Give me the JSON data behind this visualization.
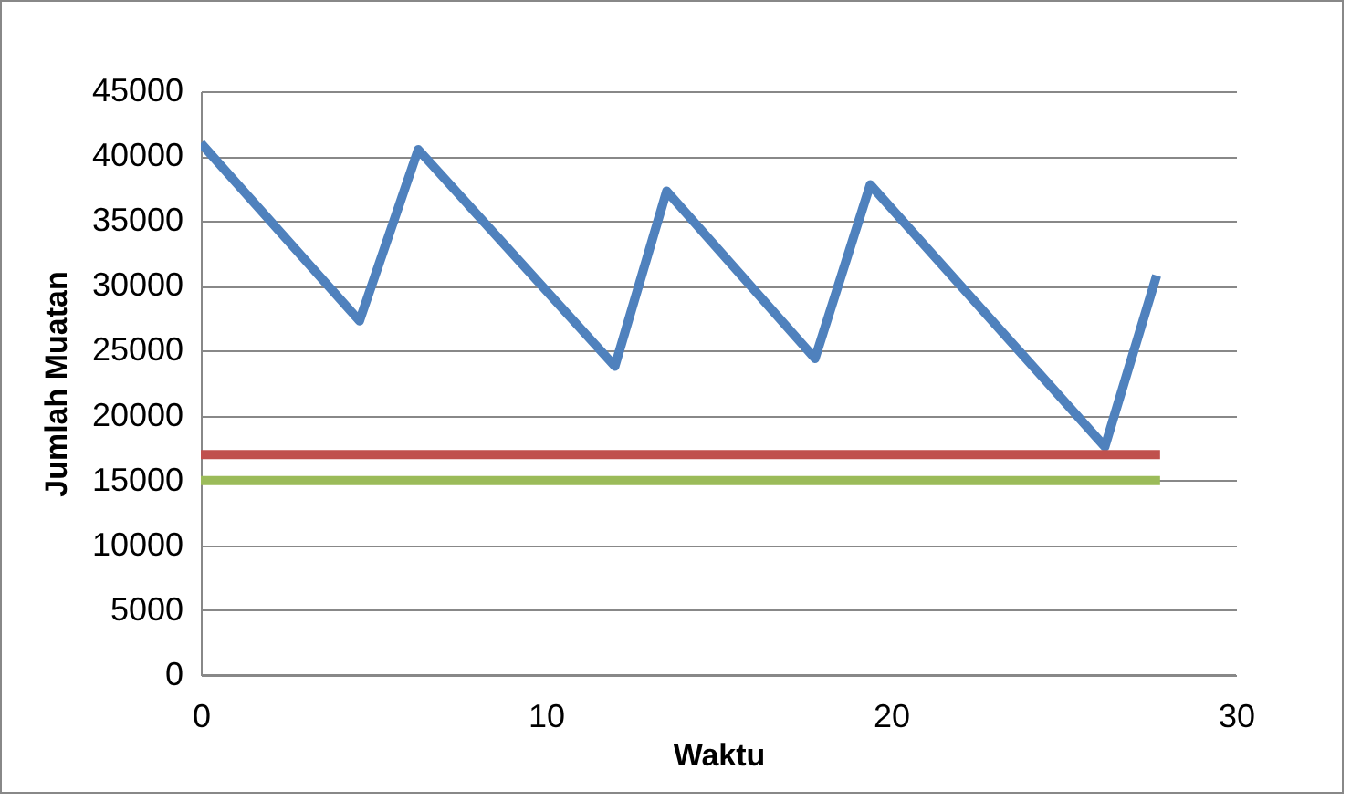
{
  "chart_data": {
    "type": "line",
    "xlabel": "Waktu",
    "ylabel": "Jumlah Muatan",
    "xlim": [
      0,
      30
    ],
    "xticks": [
      0,
      10,
      20,
      30
    ],
    "ylim": [
      0,
      45000
    ],
    "yticks": [
      0,
      5000,
      10000,
      15000,
      20000,
      25000,
      30000,
      35000,
      40000,
      45000
    ],
    "grid": "y",
    "marker": "none",
    "line_style": "solid",
    "series": [
      {
        "color": "#4f81bd",
        "x": [
          0,
          4.6,
          6.3,
          12,
          13.5,
          17.8,
          19.4,
          26.2,
          27.7
        ],
        "values": [
          41000,
          27300,
          40500,
          23800,
          37300,
          24400,
          37800,
          17600,
          30800
        ]
      },
      {
        "color": "#c0504d",
        "x": [
          0,
          27.8
        ],
        "values": [
          17000,
          17000
        ]
      },
      {
        "color": "#9bbb59",
        "x": [
          0,
          27.8
        ],
        "values": [
          15000,
          15000
        ]
      }
    ]
  }
}
